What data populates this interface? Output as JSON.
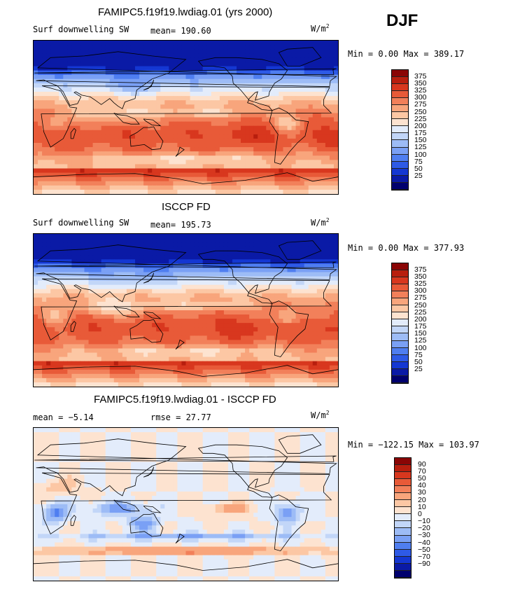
{
  "season": "DJF",
  "units_base": "W/m",
  "units_exp": "2",
  "colors": {
    "abs_scale": [
      "#00006e",
      "#0a1aa6",
      "#1437d2",
      "#2e5ae6",
      "#4f7ef0",
      "#7aa0f5",
      "#9dbcf6",
      "#c2d6f8",
      "#e3ecfb",
      "#fde3d0",
      "#fcc7a4",
      "#f8a57c",
      "#f2805a",
      "#e85a38",
      "#d8371e",
      "#b81e0e",
      "#8a0505"
    ],
    "diff_scale": [
      "#00006e",
      "#0a1aa6",
      "#1437d2",
      "#2e5ae6",
      "#4f7ef0",
      "#7aa0f5",
      "#9dbcf6",
      "#c2d6f8",
      "#e3ecfb",
      "#fde3d0",
      "#fcc7a4",
      "#f8a57c",
      "#f2805a",
      "#e85a38",
      "#d8371e",
      "#b81e0e",
      "#8a0505"
    ],
    "coast": "#000000"
  },
  "panels": [
    {
      "title": "FAMIPC5.f19f19.lwdiag.01 (yrs 2000)",
      "variable": "Surf downwelling SW",
      "mean_label": "mean= 190.60",
      "minmax": "Min =   0.00 Max = 389.17",
      "ticks": [
        "375",
        "350",
        "325",
        "300",
        "275",
        "250",
        "225",
        "200",
        "175",
        "150",
        "125",
        "100",
        "75",
        "50",
        "25"
      ]
    },
    {
      "title": "ISCCP FD",
      "variable": "Surf downwelling SW",
      "mean_label": "mean= 195.73",
      "minmax": "Min =   0.00 Max = 377.93",
      "ticks": [
        "375",
        "350",
        "325",
        "300",
        "275",
        "250",
        "225",
        "200",
        "175",
        "150",
        "125",
        "100",
        "75",
        "50",
        "25"
      ]
    },
    {
      "title": "FAMIPC5.f19f19.lwdiag.01 - ISCCP FD",
      "variable": "mean =  −5.14",
      "mean_label": "rmse =  27.77",
      "minmax": "Min = −122.15 Max = 103.97",
      "ticks": [
        "90",
        "70",
        "50",
        "40",
        "30",
        "20",
        "10",
        "0",
        "−10",
        "−20",
        "−30",
        "−40",
        "−50",
        "−70",
        "−90"
      ]
    }
  ],
  "chart_data": [
    {
      "type": "heatmap",
      "title": "FAMIPC5.f19f19.lwdiag.01 (yrs 2000)",
      "subtitle": "Surf downwelling SW",
      "units": "W/m2",
      "mean": 190.6,
      "min": 0.0,
      "max": 389.17,
      "levels": [
        25,
        50,
        75,
        100,
        125,
        150,
        175,
        200,
        225,
        250,
        275,
        300,
        325,
        350,
        375
      ]
    },
    {
      "type": "heatmap",
      "title": "ISCCP FD",
      "subtitle": "Surf downwelling SW",
      "units": "W/m2",
      "mean": 195.73,
      "min": 0.0,
      "max": 377.93,
      "levels": [
        25,
        50,
        75,
        100,
        125,
        150,
        175,
        200,
        225,
        250,
        275,
        300,
        325,
        350,
        375
      ]
    },
    {
      "type": "heatmap",
      "title": "FAMIPC5.f19f19.lwdiag.01 - ISCCP FD",
      "units": "W/m2",
      "mean": -5.14,
      "rmse": 27.77,
      "min": -122.15,
      "max": 103.97,
      "levels": [
        -90,
        -70,
        -50,
        -40,
        -30,
        -20,
        -10,
        0,
        10,
        20,
        30,
        40,
        50,
        70,
        90
      ]
    }
  ]
}
